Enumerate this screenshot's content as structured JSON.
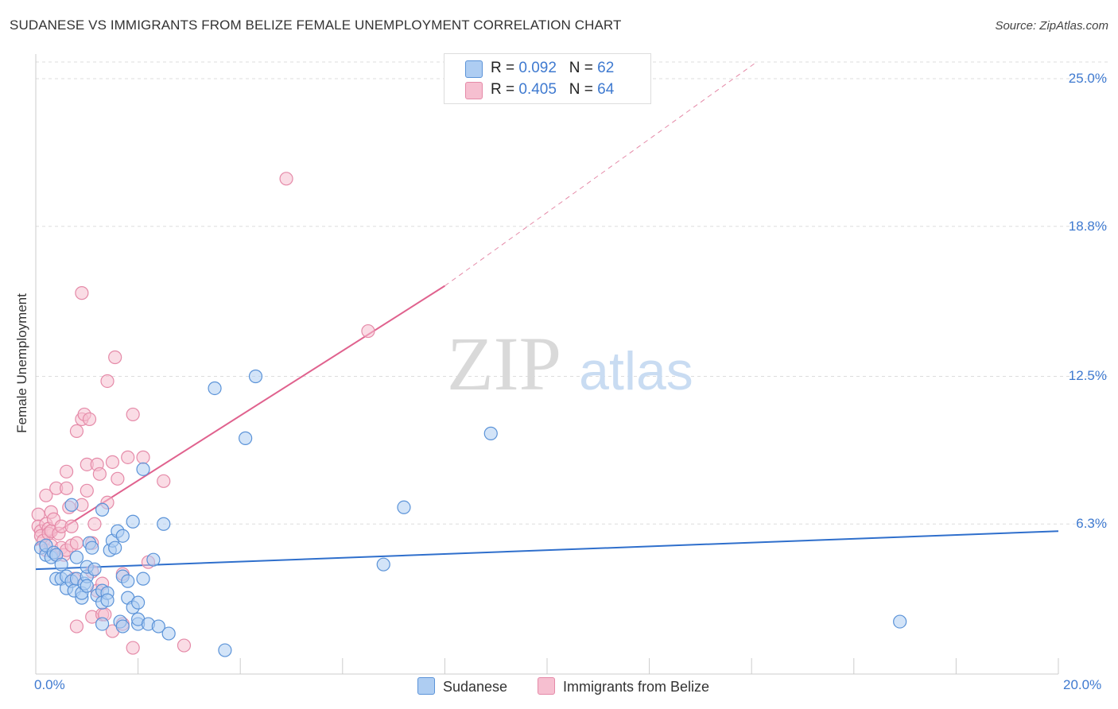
{
  "header": {
    "title": "SUDANESE VS IMMIGRANTS FROM BELIZE FEMALE UNEMPLOYMENT CORRELATION CHART",
    "source": "Source: ZipAtlas.com"
  },
  "watermark": {
    "zip": "ZIP",
    "atlas": "atlas"
  },
  "legend": {
    "r_label": "R =",
    "n_label": "N =",
    "series": [
      {
        "name": "Sudanese",
        "r": "0.092",
        "n": "62"
      },
      {
        "name": "Immigrants from Belize",
        "r": "0.405",
        "n": "64"
      }
    ]
  },
  "colors": {
    "blue_fill": "#aecdf2",
    "blue_stroke": "#5b93d8",
    "blue_line": "#2f6fcc",
    "pink_fill": "#f6bfd0",
    "pink_stroke": "#e58aa8",
    "pink_line": "#e0628e",
    "tick_label": "#3f7ad0"
  },
  "chart_data": {
    "type": "scatter",
    "title": "SUDANESE VS IMMIGRANTS FROM BELIZE FEMALE UNEMPLOYMENT CORRELATION CHART",
    "xlabel": "",
    "ylabel": "Female Unemployment",
    "xlim": [
      0,
      20
    ],
    "ylim": [
      0,
      25.7
    ],
    "x_tick_labels": [
      "0.0%",
      "20.0%"
    ],
    "y_ticks": [
      6.3,
      12.5,
      18.8,
      25.0
    ],
    "y_tick_labels": [
      "6.3%",
      "12.5%",
      "18.8%",
      "25.0%"
    ],
    "grid": "horizontal dashed",
    "legend_position": "top-center",
    "series": [
      {
        "name": "Sudanese",
        "r": 0.092,
        "n": 62,
        "trend": {
          "x": [
            0,
            20
          ],
          "y": [
            4.4,
            6.0
          ]
        },
        "points": [
          [
            0.1,
            5.3
          ],
          [
            0.2,
            5.0
          ],
          [
            0.2,
            5.4
          ],
          [
            0.3,
            4.9
          ],
          [
            0.35,
            5.1
          ],
          [
            0.4,
            5.0
          ],
          [
            0.4,
            4.0
          ],
          [
            0.5,
            4.6
          ],
          [
            0.5,
            4.0
          ],
          [
            0.6,
            3.6
          ],
          [
            0.6,
            4.1
          ],
          [
            0.7,
            7.1
          ],
          [
            0.7,
            3.9
          ],
          [
            0.75,
            3.5
          ],
          [
            0.8,
            4.9
          ],
          [
            0.8,
            4.0
          ],
          [
            0.9,
            3.2
          ],
          [
            0.9,
            3.4
          ],
          [
            0.95,
            3.8
          ],
          [
            1.0,
            4.1
          ],
          [
            1.0,
            4.5
          ],
          [
            1.0,
            3.7
          ],
          [
            1.05,
            5.5
          ],
          [
            1.1,
            5.3
          ],
          [
            1.15,
            4.4
          ],
          [
            1.2,
            3.3
          ],
          [
            1.3,
            6.9
          ],
          [
            1.3,
            3.5
          ],
          [
            1.3,
            3.0
          ],
          [
            1.3,
            2.1
          ],
          [
            1.4,
            3.4
          ],
          [
            1.4,
            3.1
          ],
          [
            1.45,
            5.2
          ],
          [
            1.5,
            5.6
          ],
          [
            1.55,
            5.3
          ],
          [
            1.6,
            6.0
          ],
          [
            1.65,
            2.2
          ],
          [
            1.7,
            4.1
          ],
          [
            1.7,
            5.8
          ],
          [
            1.7,
            2.0
          ],
          [
            1.8,
            3.9
          ],
          [
            1.8,
            3.2
          ],
          [
            1.9,
            2.8
          ],
          [
            1.9,
            6.4
          ],
          [
            2.0,
            3.0
          ],
          [
            2.0,
            2.1
          ],
          [
            2.0,
            2.3
          ],
          [
            2.1,
            4.0
          ],
          [
            2.1,
            8.6
          ],
          [
            2.2,
            2.1
          ],
          [
            2.3,
            4.8
          ],
          [
            2.4,
            2.0
          ],
          [
            2.5,
            6.3
          ],
          [
            2.6,
            1.7
          ],
          [
            3.7,
            1.0
          ],
          [
            3.5,
            12.0
          ],
          [
            4.3,
            12.5
          ],
          [
            4.1,
            9.9
          ],
          [
            6.8,
            4.6
          ],
          [
            7.2,
            7.0
          ],
          [
            8.9,
            10.1
          ],
          [
            16.9,
            2.2
          ]
        ]
      },
      {
        "name": "Immigrants from Belize",
        "r": 0.405,
        "n": 64,
        "trend": {
          "x": [
            0,
            8
          ],
          "y": [
            5.4,
            16.3
          ]
        },
        "trend_extension": {
          "x": [
            8,
            14.1
          ],
          "y": [
            16.3,
            25.7
          ]
        },
        "points": [
          [
            0.05,
            6.7
          ],
          [
            0.05,
            6.2
          ],
          [
            0.1,
            6.0
          ],
          [
            0.1,
            5.8
          ],
          [
            0.15,
            5.6
          ],
          [
            0.2,
            6.3
          ],
          [
            0.2,
            7.5
          ],
          [
            0.2,
            5.2
          ],
          [
            0.25,
            6.1
          ],
          [
            0.25,
            5.9
          ],
          [
            0.3,
            6.8
          ],
          [
            0.3,
            5.4
          ],
          [
            0.3,
            6.0
          ],
          [
            0.35,
            6.5
          ],
          [
            0.4,
            5.0
          ],
          [
            0.4,
            7.8
          ],
          [
            0.45,
            5.9
          ],
          [
            0.5,
            6.2
          ],
          [
            0.5,
            5.3
          ],
          [
            0.55,
            5.0
          ],
          [
            0.6,
            7.8
          ],
          [
            0.6,
            5.2
          ],
          [
            0.6,
            8.5
          ],
          [
            0.65,
            7.0
          ],
          [
            0.7,
            6.2
          ],
          [
            0.7,
            5.4
          ],
          [
            0.75,
            4.0
          ],
          [
            0.8,
            10.2
          ],
          [
            0.8,
            5.5
          ],
          [
            0.8,
            2.0
          ],
          [
            0.9,
            16.0
          ],
          [
            0.9,
            7.1
          ],
          [
            0.9,
            10.7
          ],
          [
            0.95,
            10.9
          ],
          [
            1.0,
            8.8
          ],
          [
            1.0,
            7.7
          ],
          [
            1.05,
            10.7
          ],
          [
            1.1,
            5.5
          ],
          [
            1.1,
            4.3
          ],
          [
            1.1,
            2.4
          ],
          [
            1.15,
            6.3
          ],
          [
            1.2,
            3.5
          ],
          [
            1.2,
            8.8
          ],
          [
            1.25,
            8.4
          ],
          [
            1.3,
            3.8
          ],
          [
            1.3,
            2.5
          ],
          [
            1.35,
            2.5
          ],
          [
            1.4,
            7.2
          ],
          [
            1.4,
            12.3
          ],
          [
            1.5,
            1.8
          ],
          [
            1.5,
            8.9
          ],
          [
            1.55,
            13.3
          ],
          [
            1.6,
            8.2
          ],
          [
            1.7,
            2.1
          ],
          [
            1.7,
            4.2
          ],
          [
            1.8,
            9.1
          ],
          [
            1.9,
            1.1
          ],
          [
            1.9,
            10.9
          ],
          [
            2.1,
            9.1
          ],
          [
            2.2,
            4.7
          ],
          [
            2.5,
            8.1
          ],
          [
            2.9,
            1.2
          ],
          [
            4.9,
            20.8
          ],
          [
            6.5,
            14.4
          ]
        ]
      }
    ]
  }
}
